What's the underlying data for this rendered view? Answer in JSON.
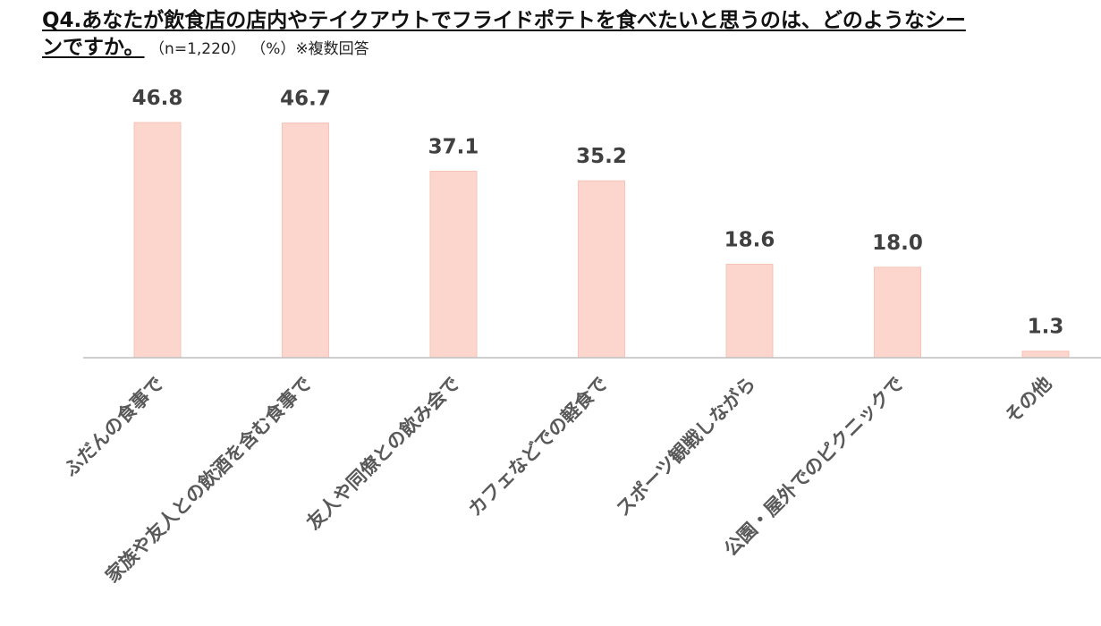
{
  "header": {
    "title_line1": "Q4.あなたが飲食店の店内やテイクアウトでフライドポテトを食べたいと思うのは、どのようなシー",
    "title_line2": "ンですか。",
    "sample": "（n=1,220）",
    "unit": "（%）※複数回答"
  },
  "chart_data": {
    "type": "bar",
    "title": "Q4.あなたが飲食店の店内やテイクアウトでフライドポテトを食べたいと思うのは、どのようなシーンですか。",
    "categories": [
      "ふだんの食事で",
      "家族や友人との飲酒を含む食事で",
      "友人や同僚との飲み会で",
      "カフェなどでの軽食で",
      "スポーツ観戦しながら",
      "公園・屋外でのピクニックで",
      "その他"
    ],
    "values": [
      46.8,
      46.7,
      37.1,
      35.2,
      18.6,
      18.0,
      1.3
    ],
    "value_labels": [
      "46.8",
      "46.7",
      "37.1",
      "35.2",
      "18.6",
      "18.0",
      "1.3"
    ],
    "xlabel": "",
    "ylabel": "",
    "ylim": [
      0,
      46.8
    ],
    "grid": false,
    "legend": "none",
    "colors": {
      "bar": "#fcd5cc",
      "bar_edge": "#f6c4b8",
      "axis": "#bfbfbf",
      "label": "#404040",
      "category": "#595959"
    }
  }
}
